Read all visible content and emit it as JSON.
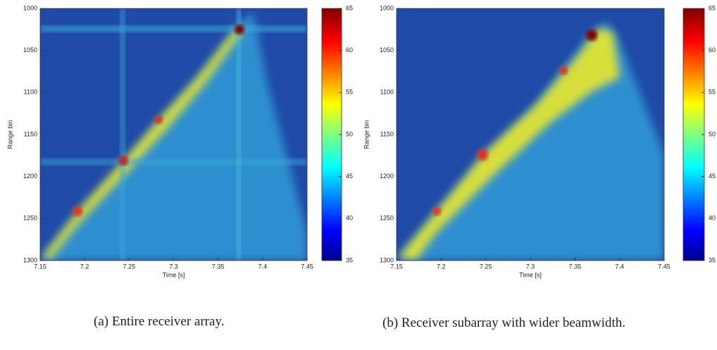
{
  "charts": [
    {
      "type": "heatmap",
      "xlabel": "Time [s]",
      "ylabel": "Range bin",
      "xlim": [
        7.15,
        7.45
      ],
      "xticks": [
        7.15,
        7.2,
        7.25,
        7.3,
        7.35,
        7.4,
        7.45
      ],
      "ylim": [
        1300,
        1000
      ],
      "yticks": [
        1000,
        1050,
        1100,
        1150,
        1200,
        1250,
        1300
      ],
      "clim": [
        35,
        65
      ],
      "cticks": [
        35,
        40,
        45,
        50,
        55,
        60,
        65
      ],
      "caption": "(a) Entire receiver array."
    },
    {
      "type": "heatmap",
      "xlabel": "Time [s]",
      "ylabel": "Range bin",
      "xlim": [
        7.15,
        7.45
      ],
      "xticks": [
        7.15,
        7.2,
        7.25,
        7.3,
        7.35,
        7.4,
        7.45
      ],
      "ylim": [
        1300,
        1000
      ],
      "yticks": [
        1000,
        1050,
        1100,
        1150,
        1200,
        1250,
        1300
      ],
      "clim": [
        35,
        65
      ],
      "cticks": [
        35,
        40,
        45,
        50,
        55,
        60,
        65
      ],
      "caption": "(b) Receiver subarray with wider beamwidth."
    }
  ]
}
